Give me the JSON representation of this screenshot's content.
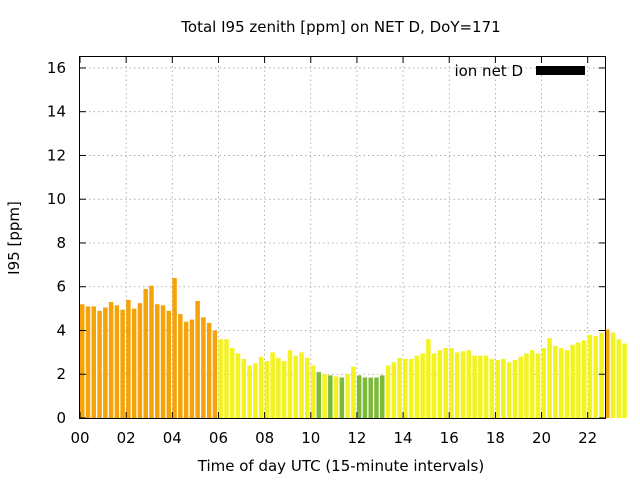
{
  "chart_data": {
    "type": "bar",
    "title": "Total I95 zenith [ppm] on NET D, DoY=171",
    "xlabel": "Time of day UTC (15-minute intervals)",
    "ylabel": "I95 [ppm]",
    "xlim": [
      0,
      22.75
    ],
    "ylim": [
      0,
      16.5
    ],
    "x_tick_labels": [
      "00",
      "02",
      "04",
      "06",
      "08",
      "10",
      "12",
      "14",
      "16",
      "18",
      "20",
      "22"
    ],
    "x_tick_values": [
      0,
      2,
      4,
      6,
      8,
      10,
      12,
      14,
      16,
      18,
      20,
      22
    ],
    "y_tick_values": [
      0,
      2,
      4,
      6,
      8,
      10,
      12,
      14,
      16
    ],
    "grid": true,
    "legend": {
      "label": "ion net D",
      "placement": "top-right",
      "color": "#000000"
    },
    "bar_interval_hours": 0.25,
    "colors": {
      "orange": "#f5a30a",
      "yellow": "#f3f31f",
      "green": "#7cba3a"
    },
    "values": [
      5.2,
      5.1,
      5.1,
      4.9,
      5.05,
      5.3,
      5.15,
      4.95,
      5.4,
      5.0,
      5.25,
      5.9,
      6.05,
      5.2,
      5.15,
      4.9,
      6.4,
      4.75,
      4.4,
      4.5,
      5.35,
      4.6,
      4.35,
      4.0,
      3.6,
      3.6,
      3.2,
      2.95,
      2.7,
      2.4,
      2.5,
      2.8,
      2.6,
      3.0,
      2.75,
      2.6,
      3.1,
      2.85,
      3.0,
      2.75,
      2.4,
      2.1,
      2.0,
      1.95,
      1.9,
      1.85,
      2.0,
      2.35,
      1.95,
      1.85,
      1.85,
      1.85,
      1.95,
      2.4,
      2.55,
      2.75,
      2.7,
      2.7,
      2.85,
      2.95,
      3.6,
      2.95,
      3.1,
      3.2,
      3.2,
      3.0,
      3.05,
      3.1,
      2.85,
      2.85,
      2.85,
      2.7,
      2.65,
      2.7,
      2.55,
      2.65,
      2.8,
      2.95,
      3.1,
      2.95,
      3.2,
      3.65,
      3.3,
      3.2,
      3.1,
      3.35,
      3.45,
      3.55,
      3.8,
      3.75,
      3.9,
      4.05,
      3.9,
      3.6,
      3.4
    ],
    "bar_colors": [
      "orange",
      "orange",
      "orange",
      "orange",
      "orange",
      "orange",
      "orange",
      "orange",
      "orange",
      "orange",
      "orange",
      "orange",
      "orange",
      "orange",
      "orange",
      "orange",
      "orange",
      "orange",
      "orange",
      "orange",
      "orange",
      "orange",
      "orange",
      "orange",
      "yellow",
      "yellow",
      "yellow",
      "yellow",
      "yellow",
      "yellow",
      "yellow",
      "yellow",
      "yellow",
      "yellow",
      "yellow",
      "yellow",
      "yellow",
      "yellow",
      "yellow",
      "yellow",
      "yellow",
      "green",
      "yellow",
      "green",
      "yellow",
      "green",
      "yellow",
      "yellow",
      "green",
      "green",
      "green",
      "green",
      "green",
      "yellow",
      "yellow",
      "yellow",
      "yellow",
      "yellow",
      "yellow",
      "yellow",
      "yellow",
      "yellow",
      "yellow",
      "yellow",
      "yellow",
      "yellow",
      "yellow",
      "yellow",
      "yellow",
      "yellow",
      "yellow",
      "yellow",
      "yellow",
      "yellow",
      "yellow",
      "yellow",
      "yellow",
      "yellow",
      "yellow",
      "yellow",
      "yellow",
      "yellow",
      "yellow",
      "yellow",
      "yellow",
      "yellow",
      "yellow",
      "yellow",
      "yellow",
      "yellow",
      "yellow",
      "orange",
      "yellow",
      "yellow",
      "yellow"
    ]
  }
}
